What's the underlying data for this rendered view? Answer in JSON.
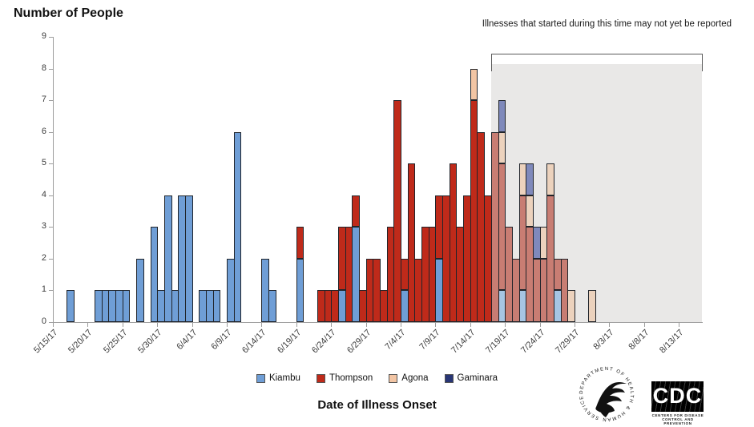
{
  "annotation": {
    "text": "Illnesses that started during this time may not yet be reported"
  },
  "chart_data": {
    "type": "bar",
    "subtype": "stacked-epi-curve",
    "title": "Number of People",
    "ylabel": "Number of People",
    "xlabel": "Date of Illness Onset",
    "ylim": [
      0,
      9
    ],
    "grid": false,
    "legend_position": "bottom",
    "yticks": [
      0,
      1,
      2,
      3,
      4,
      5,
      6,
      7,
      8,
      9
    ],
    "xtick_labels": [
      "5/15/17",
      "5/20/17",
      "5/25/17",
      "5/30/17",
      "6/4/17",
      "6/9/17",
      "6/14/17",
      "6/19/17",
      "6/24/17",
      "6/29/17",
      "7/4/17",
      "7/9/17",
      "7/14/17",
      "7/19/17",
      "7/24/17",
      "7/29/17",
      "8/3/17",
      "8/8/17",
      "8/13/17"
    ],
    "shaded_region": {
      "starts_at_label": "7/17/17",
      "note": "Illnesses that started during this time may not yet be reported",
      "fill": "#e9e8e7"
    },
    "legend": [
      {
        "label": "Kiambu",
        "color": "#6f9ed6"
      },
      {
        "label": "Thompson",
        "color": "#bf2a1a"
      },
      {
        "label": "Agona",
        "color": "#f2c5a4"
      },
      {
        "label": "Gaminara",
        "color": "#283575"
      }
    ],
    "colors_solid": {
      "k": "#6f9ed6",
      "t": "#bf2a1a",
      "a": "#f2c5a4",
      "g": "#283575"
    },
    "colors_faded": {
      "k": "#a6c5e3",
      "t": "#c87d73",
      "a": "#ecd2bd",
      "g": "#7f89bb"
    },
    "stack_order": [
      "k",
      "t",
      "a",
      "g"
    ],
    "series_key": {
      "k": "Kiambu",
      "t": "Thompson",
      "a": "Agona",
      "g": "Gaminara",
      "f": "in_shaded_not_yet_reported_window"
    },
    "bars": [
      {
        "day": 2,
        "date": "5/17/17",
        "k": 1,
        "t": 0,
        "a": 0,
        "g": 0,
        "f": false
      },
      {
        "day": 6,
        "date": "5/21/17",
        "k": 1,
        "t": 0,
        "a": 0,
        "g": 0,
        "f": false
      },
      {
        "day": 7,
        "date": "5/22/17",
        "k": 1,
        "t": 0,
        "a": 0,
        "g": 0,
        "f": false
      },
      {
        "day": 8,
        "date": "5/23/17",
        "k": 1,
        "t": 0,
        "a": 0,
        "g": 0,
        "f": false
      },
      {
        "day": 9,
        "date": "5/24/17",
        "k": 1,
        "t": 0,
        "a": 0,
        "g": 0,
        "f": false
      },
      {
        "day": 10,
        "date": "5/25/17",
        "k": 1,
        "t": 0,
        "a": 0,
        "g": 0,
        "f": false
      },
      {
        "day": 12,
        "date": "5/27/17",
        "k": 2,
        "t": 0,
        "a": 0,
        "g": 0,
        "f": false
      },
      {
        "day": 14,
        "date": "5/29/17",
        "k": 3,
        "t": 0,
        "a": 0,
        "g": 0,
        "f": false
      },
      {
        "day": 15,
        "date": "5/30/17",
        "k": 1,
        "t": 0,
        "a": 0,
        "g": 0,
        "f": false
      },
      {
        "day": 16,
        "date": "5/31/17",
        "k": 4,
        "t": 0,
        "a": 0,
        "g": 0,
        "f": false
      },
      {
        "day": 17,
        "date": "6/1/17",
        "k": 1,
        "t": 0,
        "a": 0,
        "g": 0,
        "f": false
      },
      {
        "day": 18,
        "date": "6/2/17",
        "k": 4,
        "t": 0,
        "a": 0,
        "g": 0,
        "f": false
      },
      {
        "day": 19,
        "date": "6/3/17",
        "k": 4,
        "t": 0,
        "a": 0,
        "g": 0,
        "f": false
      },
      {
        "day": 21,
        "date": "6/5/17",
        "k": 1,
        "t": 0,
        "a": 0,
        "g": 0,
        "f": false
      },
      {
        "day": 22,
        "date": "6/6/17",
        "k": 1,
        "t": 0,
        "a": 0,
        "g": 0,
        "f": false
      },
      {
        "day": 23,
        "date": "6/7/17",
        "k": 1,
        "t": 0,
        "a": 0,
        "g": 0,
        "f": false
      },
      {
        "day": 25,
        "date": "6/9/17",
        "k": 2,
        "t": 0,
        "a": 0,
        "g": 0,
        "f": false
      },
      {
        "day": 26,
        "date": "6/10/17",
        "k": 6,
        "t": 0,
        "a": 0,
        "g": 0,
        "f": false
      },
      {
        "day": 30,
        "date": "6/14/17",
        "k": 2,
        "t": 0,
        "a": 0,
        "g": 0,
        "f": false
      },
      {
        "day": 31,
        "date": "6/15/17",
        "k": 1,
        "t": 0,
        "a": 0,
        "g": 0,
        "f": false
      },
      {
        "day": 35,
        "date": "6/19/17",
        "k": 2,
        "t": 1,
        "a": 0,
        "g": 0,
        "f": false
      },
      {
        "day": 38,
        "date": "6/22/17",
        "k": 0,
        "t": 1,
        "a": 0,
        "g": 0,
        "f": false
      },
      {
        "day": 39,
        "date": "6/23/17",
        "k": 0,
        "t": 1,
        "a": 0,
        "g": 0,
        "f": false
      },
      {
        "day": 40,
        "date": "6/24/17",
        "k": 0,
        "t": 1,
        "a": 0,
        "g": 0,
        "f": false
      },
      {
        "day": 41,
        "date": "6/25/17",
        "k": 1,
        "t": 2,
        "a": 0,
        "g": 0,
        "f": false
      },
      {
        "day": 42,
        "date": "6/26/17",
        "k": 0,
        "t": 3,
        "a": 0,
        "g": 0,
        "f": false
      },
      {
        "day": 43,
        "date": "6/27/17",
        "k": 3,
        "t": 1,
        "a": 0,
        "g": 0,
        "f": false
      },
      {
        "day": 44,
        "date": "6/28/17",
        "k": 0,
        "t": 1,
        "a": 0,
        "g": 0,
        "f": false
      },
      {
        "day": 45,
        "date": "6/29/17",
        "k": 0,
        "t": 2,
        "a": 0,
        "g": 0,
        "f": false
      },
      {
        "day": 46,
        "date": "6/30/17",
        "k": 0,
        "t": 2,
        "a": 0,
        "g": 0,
        "f": false
      },
      {
        "day": 47,
        "date": "7/1/17",
        "k": 0,
        "t": 1,
        "a": 0,
        "g": 0,
        "f": false
      },
      {
        "day": 48,
        "date": "7/2/17",
        "k": 0,
        "t": 3,
        "a": 0,
        "g": 0,
        "f": false
      },
      {
        "day": 49,
        "date": "7/3/17",
        "k": 0,
        "t": 7,
        "a": 0,
        "g": 0,
        "f": false
      },
      {
        "day": 50,
        "date": "7/4/17",
        "k": 1,
        "t": 1,
        "a": 0,
        "g": 0,
        "f": false
      },
      {
        "day": 51,
        "date": "7/5/17",
        "k": 0,
        "t": 5,
        "a": 0,
        "g": 0,
        "f": false
      },
      {
        "day": 52,
        "date": "7/6/17",
        "k": 0,
        "t": 2,
        "a": 0,
        "g": 0,
        "f": false
      },
      {
        "day": 53,
        "date": "7/7/17",
        "k": 0,
        "t": 3,
        "a": 0,
        "g": 0,
        "f": false
      },
      {
        "day": 54,
        "date": "7/8/17",
        "k": 0,
        "t": 3,
        "a": 0,
        "g": 0,
        "f": false
      },
      {
        "day": 55,
        "date": "7/9/17",
        "k": 2,
        "t": 2,
        "a": 0,
        "g": 0,
        "f": false
      },
      {
        "day": 56,
        "date": "7/10/17",
        "k": 0,
        "t": 4,
        "a": 0,
        "g": 0,
        "f": false
      },
      {
        "day": 57,
        "date": "7/11/17",
        "k": 0,
        "t": 5,
        "a": 0,
        "g": 0,
        "f": false
      },
      {
        "day": 58,
        "date": "7/12/17",
        "k": 0,
        "t": 3,
        "a": 0,
        "g": 0,
        "f": false
      },
      {
        "day": 59,
        "date": "7/13/17",
        "k": 0,
        "t": 4,
        "a": 0,
        "g": 0,
        "f": false
      },
      {
        "day": 60,
        "date": "7/14/17",
        "k": 0,
        "t": 7,
        "a": 1,
        "g": 0,
        "f": false
      },
      {
        "day": 61,
        "date": "7/15/17",
        "k": 0,
        "t": 6,
        "a": 0,
        "g": 0,
        "f": false
      },
      {
        "day": 62,
        "date": "7/16/17",
        "k": 0,
        "t": 4,
        "a": 0,
        "g": 0,
        "f": false
      },
      {
        "day": 63,
        "date": "7/17/17",
        "k": 0,
        "t": 6,
        "a": 0,
        "g": 0,
        "f": true
      },
      {
        "day": 64,
        "date": "7/18/17",
        "k": 1,
        "t": 4,
        "a": 1,
        "g": 1,
        "f": true
      },
      {
        "day": 65,
        "date": "7/19/17",
        "k": 0,
        "t": 3,
        "a": 0,
        "g": 0,
        "f": true
      },
      {
        "day": 66,
        "date": "7/20/17",
        "k": 0,
        "t": 2,
        "a": 0,
        "g": 0,
        "f": true
      },
      {
        "day": 67,
        "date": "7/21/17",
        "k": 1,
        "t": 3,
        "a": 1,
        "g": 0,
        "f": true
      },
      {
        "day": 68,
        "date": "7/22/17",
        "k": 0,
        "t": 3,
        "a": 1,
        "g": 1,
        "f": true
      },
      {
        "day": 69,
        "date": "7/23/17",
        "k": 0,
        "t": 2,
        "a": 0,
        "g": 1,
        "f": true
      },
      {
        "day": 70,
        "date": "7/24/17",
        "k": 0,
        "t": 2,
        "a": 1,
        "g": 0,
        "f": true
      },
      {
        "day": 71,
        "date": "7/25/17",
        "k": 0,
        "t": 4,
        "a": 1,
        "g": 0,
        "f": true
      },
      {
        "day": 72,
        "date": "7/26/17",
        "k": 1,
        "t": 1,
        "a": 0,
        "g": 0,
        "f": true
      },
      {
        "day": 73,
        "date": "7/27/17",
        "k": 0,
        "t": 2,
        "a": 0,
        "g": 0,
        "f": true
      },
      {
        "day": 74,
        "date": "7/28/17",
        "k": 0,
        "t": 0,
        "a": 1,
        "g": 0,
        "f": true
      },
      {
        "day": 77,
        "date": "7/31/17",
        "k": 0,
        "t": 0,
        "a": 1,
        "g": 0,
        "f": true
      }
    ]
  },
  "footer": {
    "x_axis_title": "Date of Illness Onset"
  },
  "logos": {
    "hhs_ring_text": "DEPARTMENT OF HEALTH & HUMAN SERVICES · USA",
    "cdc_acronym": "CDC",
    "cdc_caption": "Centers for Disease Control and Prevention"
  }
}
